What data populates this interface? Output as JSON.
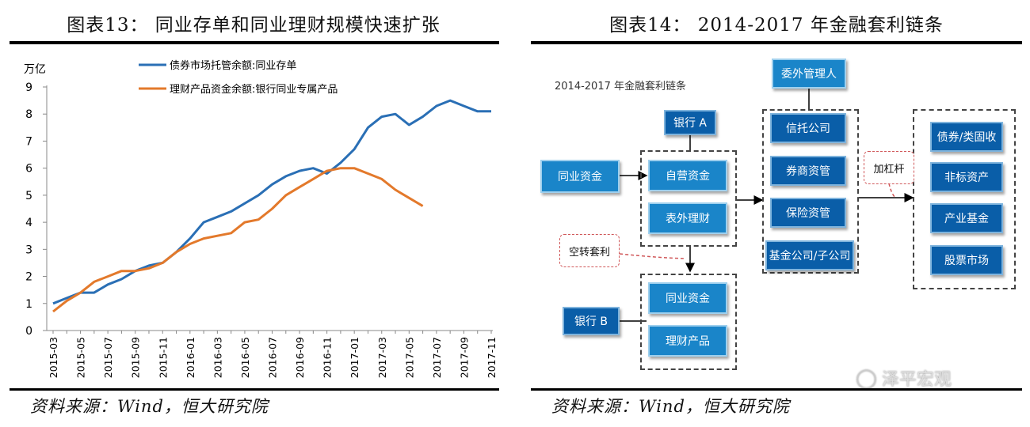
{
  "left": {
    "figure_title": "图表13：  同业存单和同业理财规模快速扩张",
    "source": "资料来源：Wind，恒大研究院",
    "chart_data": {
      "type": "line",
      "ylabel": "万亿",
      "ylim": [
        0,
        9
      ],
      "yticks": [
        0,
        1,
        2,
        3,
        4,
        5,
        6,
        7,
        8,
        9
      ],
      "x_tick_labels": [
        "2015-03",
        "2015-05",
        "2015-07",
        "2015-09",
        "2015-11",
        "2016-01",
        "2016-03",
        "2016-05",
        "2016-07",
        "2016-09",
        "2016-11",
        "2017-01",
        "2017-03",
        "2017-05",
        "2017-07",
        "2017-09",
        "2017-11"
      ],
      "x": [
        "2015-03",
        "2015-04",
        "2015-05",
        "2015-06",
        "2015-07",
        "2015-08",
        "2015-09",
        "2015-10",
        "2015-11",
        "2015-12",
        "2016-01",
        "2016-02",
        "2016-03",
        "2016-04",
        "2016-05",
        "2016-06",
        "2016-07",
        "2016-08",
        "2016-09",
        "2016-10",
        "2016-11",
        "2016-12",
        "2017-01",
        "2017-02",
        "2017-03",
        "2017-04",
        "2017-05",
        "2017-06",
        "2017-07",
        "2017-08",
        "2017-09",
        "2017-10",
        "2017-11"
      ],
      "legend_position": "top",
      "series": [
        {
          "name": "债券市场托管余额:同业存单",
          "color": "#2a6fb5",
          "values": [
            1.0,
            1.2,
            1.4,
            1.4,
            1.7,
            1.9,
            2.2,
            2.4,
            2.5,
            2.9,
            3.4,
            4.0,
            4.2,
            4.4,
            4.7,
            5.0,
            5.4,
            5.7,
            5.9,
            6.0,
            5.8,
            6.2,
            6.7,
            7.5,
            7.9,
            8.0,
            7.6,
            7.9,
            8.3,
            8.5,
            8.3,
            8.1,
            8.1
          ]
        },
        {
          "name": "理财产品资金余额:银行同业专属产品",
          "color": "#e3792b",
          "values": [
            0.7,
            1.1,
            1.4,
            1.8,
            2.0,
            2.2,
            2.2,
            2.3,
            2.5,
            2.9,
            3.2,
            3.4,
            3.5,
            3.6,
            4.0,
            4.1,
            4.5,
            5.0,
            5.3,
            5.6,
            5.9,
            6.0,
            6.0,
            5.8,
            5.6,
            5.2,
            4.9,
            4.6,
            null,
            null,
            null,
            null,
            null
          ]
        }
      ]
    }
  },
  "right": {
    "figure_title": "图表14：  2014-2017 年金融套利链条",
    "diagram_title": "2014-2017 年金融套利链条",
    "source": "资料来源：Wind，恒大研究院",
    "nodes": {
      "bank_a": "银行 A",
      "tongye_zijin_left": "同业资金",
      "ziying_zijin": "自营资金",
      "biaowai_licai": "表外理财",
      "weiwai_guanliren": "委外管理人",
      "xintuo": "信托公司",
      "quanshang": "券商资管",
      "baoxian": "保险资管",
      "jijin": "基金公司/子公司",
      "zhaiquan": "债券/类固收",
      "feibiao": "非标资产",
      "chanye": "产业基金",
      "gupiao": "股票市场",
      "bank_b": "银行 B",
      "tongye_zijin_b": "同业资金",
      "licai_chanpin": "理财产品"
    },
    "callouts": {
      "kongzhuan": "空转套利",
      "jiaganggan": "加杠杆"
    },
    "watermark": "泽平宏观"
  }
}
